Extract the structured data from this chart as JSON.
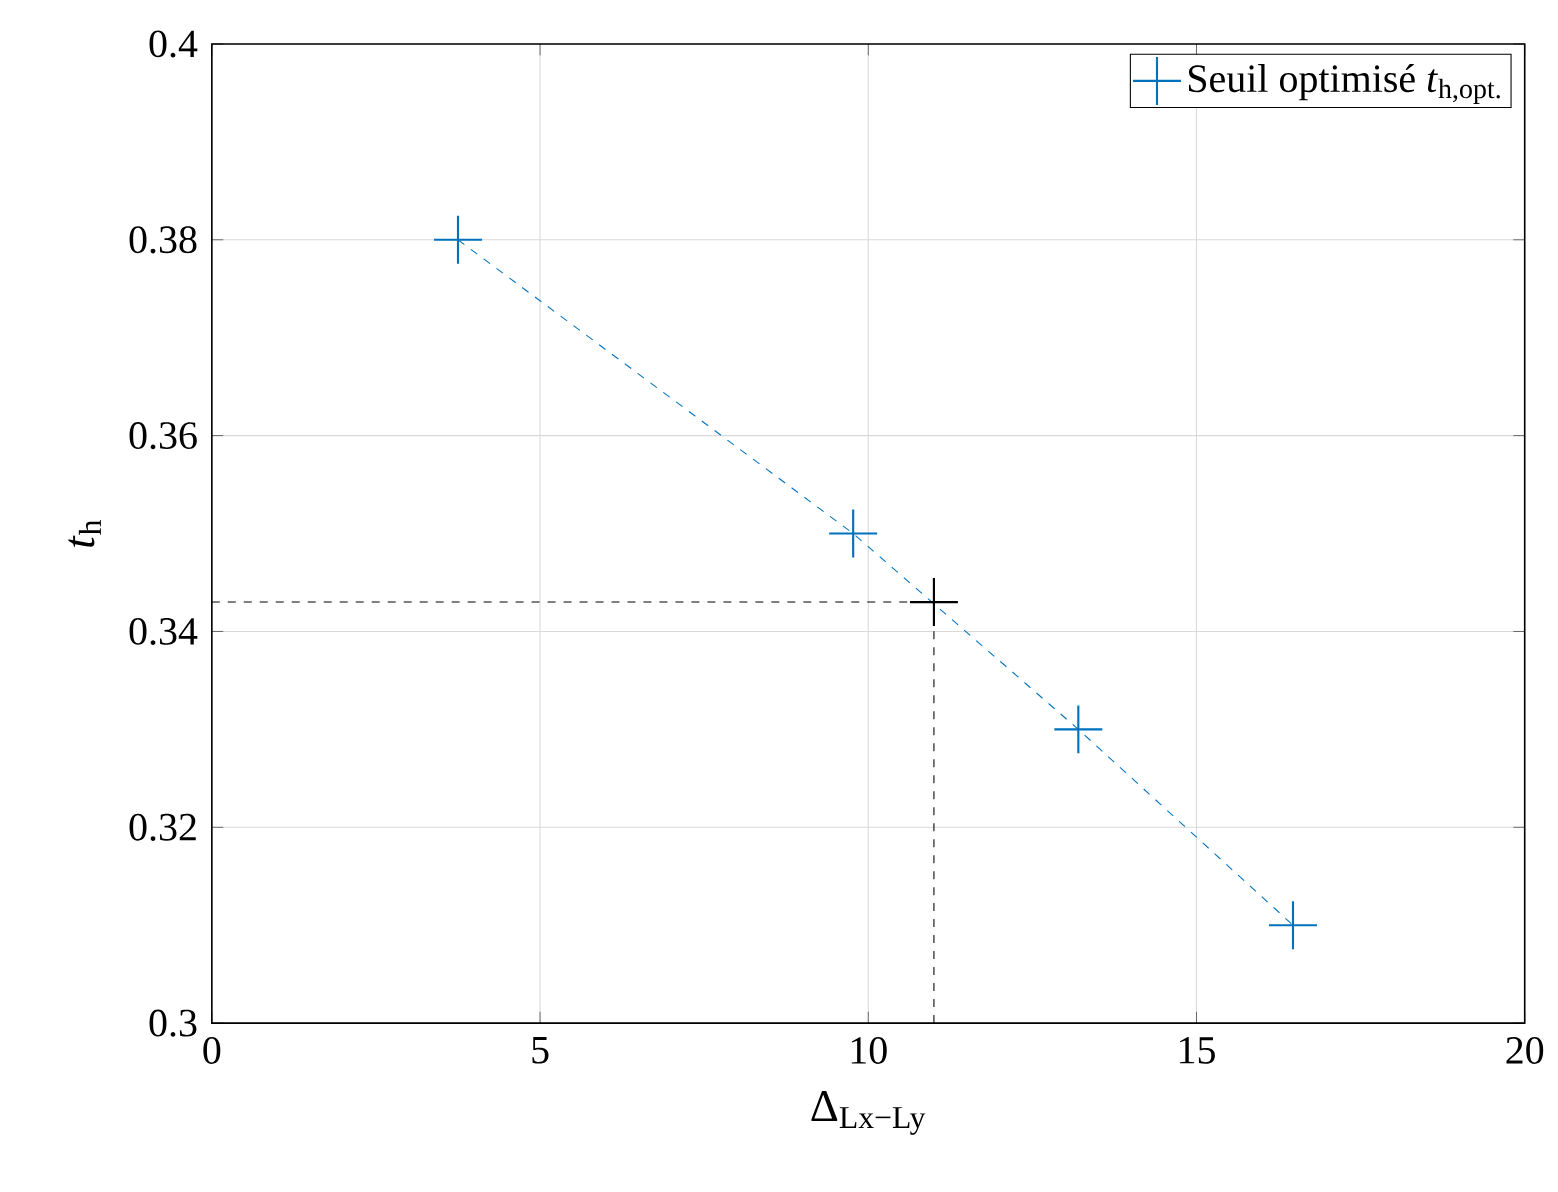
{
  "chart_data": {
    "type": "line",
    "xlabel": "Δ$_{Lx−Ly}$",
    "ylabel": "*t*$_{h}$",
    "xlim": [
      0,
      20
    ],
    "ylim": [
      0.3,
      0.4
    ],
    "xticks": [
      0,
      5,
      10,
      15,
      20
    ],
    "yticks": [
      0.3,
      0.32,
      0.34,
      0.36,
      0.38,
      0.4
    ],
    "grid": true,
    "legend": "top right",
    "series": [
      {
        "name": "Seuil optimisé *t*$_{h,opt.}$",
        "color": "#0072bd",
        "marker": "cross",
        "line_style": "dashed",
        "x": [
          3.75,
          9.77,
          13.2,
          16.47
        ],
        "values": [
          0.38,
          0.35,
          0.33,
          0.31
        ]
      },
      {
        "color": "#000000",
        "marker": "none",
        "line_style": "dashed",
        "x": [
          0,
          11,
          11
        ],
        "values": [
          0.343,
          0.343,
          0.3
        ]
      },
      {
        "type": "scatter",
        "color": "#000000",
        "marker": "cross",
        "x": [
          11
        ],
        "values": [
          0.343
        ]
      }
    ]
  }
}
